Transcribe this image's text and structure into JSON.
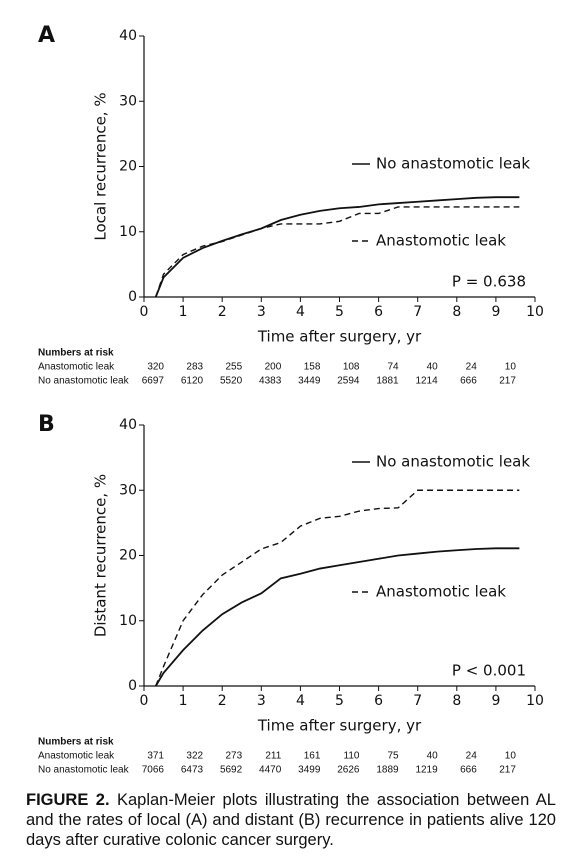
{
  "chart_data": [
    {
      "type": "line",
      "panel": "A",
      "x_label": "Time after surgery, yr",
      "y_label": "Local recurrence, %",
      "xlim": [
        0,
        10
      ],
      "ylim": [
        0,
        40
      ],
      "xticks": [
        0,
        1,
        2,
        3,
        4,
        5,
        6,
        7,
        8,
        9,
        10
      ],
      "yticks": [
        0,
        10,
        20,
        30,
        40
      ],
      "x": [
        0.3,
        0.5,
        1,
        1.5,
        2,
        2.5,
        3,
        3.5,
        4,
        4.5,
        5,
        5.5,
        6,
        6.5,
        7,
        7.5,
        8,
        8.5,
        9,
        9.6
      ],
      "series": [
        {
          "name": "No anastomotic leak",
          "color": "#111111",
          "style": "solid",
          "values": [
            0,
            3,
            6,
            7.5,
            8.6,
            9.6,
            10.5,
            11.8,
            12.6,
            13.2,
            13.6,
            13.8,
            14.2,
            14.4,
            14.6,
            14.8,
            15,
            15.2,
            15.3,
            15.3
          ]
        },
        {
          "name": "Anastomotic leak",
          "color": "#111111",
          "style": "dashed",
          "values": [
            0,
            3.5,
            6.5,
            7.8,
            8.5,
            9.5,
            10.5,
            11.2,
            11.2,
            11.2,
            11.6,
            12.8,
            12.8,
            13.8,
            13.8,
            13.8,
            13.8,
            13.8,
            13.8,
            13.8
          ]
        }
      ],
      "annotation": "P = 0.638",
      "risk_table": {
        "title": "Numbers at risk",
        "rows": [
          {
            "name": "Anastomotic leak",
            "values": [
              320,
              283,
              255,
              200,
              158,
              108,
              74,
              40,
              24,
              10
            ]
          },
          {
            "name": "No anastomotic leak",
            "values": [
              6697,
              6120,
              5520,
              4383,
              3449,
              2594,
              1881,
              1214,
              666,
              217
            ]
          }
        ]
      }
    },
    {
      "type": "line",
      "panel": "B",
      "x_label": "Time after surgery, yr",
      "y_label": "Distant recurrence, %",
      "xlim": [
        0,
        10
      ],
      "ylim": [
        0,
        40
      ],
      "xticks": [
        0,
        1,
        2,
        3,
        4,
        5,
        6,
        7,
        8,
        9,
        10
      ],
      "yticks": [
        0,
        10,
        20,
        30,
        40
      ],
      "x": [
        0.3,
        0.5,
        1,
        1.5,
        2,
        2.5,
        3,
        3.5,
        4,
        4.5,
        5,
        5.5,
        6,
        6.5,
        7,
        7.5,
        8,
        8.5,
        9,
        9.6
      ],
      "series": [
        {
          "name": "Anastomotic leak",
          "color": "#111111",
          "style": "dashed",
          "values": [
            0,
            3,
            10,
            14,
            17,
            19,
            21,
            22,
            24.5,
            25.7,
            26,
            26.8,
            27.2,
            27.3,
            30,
            30,
            30,
            30,
            30,
            30
          ]
        },
        {
          "name": "No anastomotic leak",
          "color": "#111111",
          "style": "solid",
          "values": [
            0,
            2,
            5.5,
            8.5,
            11,
            12.8,
            14.2,
            16.5,
            17.2,
            18,
            18.5,
            19,
            19.5,
            20,
            20.3,
            20.6,
            20.8,
            21,
            21.1,
            21.1
          ]
        }
      ],
      "annotation": "P < 0.001",
      "risk_table": {
        "title": "Numbers at risk",
        "rows": [
          {
            "name": "Anastomotic leak",
            "values": [
              371,
              322,
              273,
              211,
              161,
              110,
              75,
              40,
              24,
              10
            ]
          },
          {
            "name": "No anastomotic leak",
            "values": [
              7066,
              6473,
              5692,
              4470,
              3499,
              2626,
              1889,
              1219,
              666,
              217
            ]
          }
        ]
      }
    }
  ],
  "caption": {
    "label": "FIGURE 2.",
    "text": "Kaplan-Meier plots illustrating the association between AL and the rates of local (A) and distant (B) recurrence in patients alive 120 days after curative colonic cancer surgery."
  }
}
